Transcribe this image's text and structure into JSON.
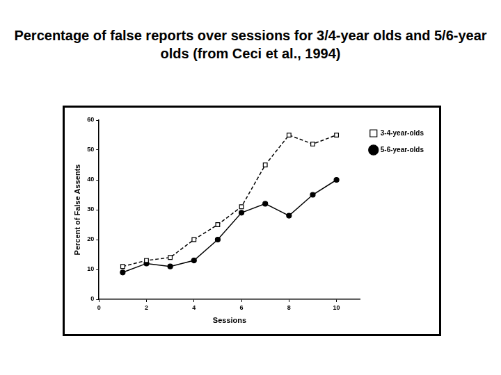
{
  "chart_data": {
    "type": "line",
    "title": "Percentage of false reports over sessions for 3/4-year olds and 5/6-year olds (from Ceci et al., 1994)",
    "x_label": "Sessions",
    "y_label": "Percent of False Assents",
    "x": [
      1,
      2,
      3,
      4,
      5,
      6,
      7,
      8,
      9,
      10
    ],
    "series": [
      {
        "name": "3-4-year-olds",
        "color": "#000000",
        "marker": "open square",
        "line_style": "dashed",
        "values": [
          11,
          13,
          14,
          20,
          25,
          31,
          45,
          55,
          52,
          55
        ]
      },
      {
        "name": "5-6-year-olds",
        "color": "#000000",
        "marker": "filled circle",
        "line_style": "solid",
        "values": [
          9,
          12,
          11,
          13,
          20,
          29,
          32,
          28,
          35,
          40
        ]
      }
    ],
    "xlim": [
      0,
      11
    ],
    "xticks": [
      0,
      2,
      4,
      6,
      8,
      10
    ],
    "ylim": [
      0,
      60
    ],
    "yticks": [
      0,
      10,
      20,
      30,
      40,
      50,
      60
    ],
    "grid": false,
    "legend": "right"
  }
}
